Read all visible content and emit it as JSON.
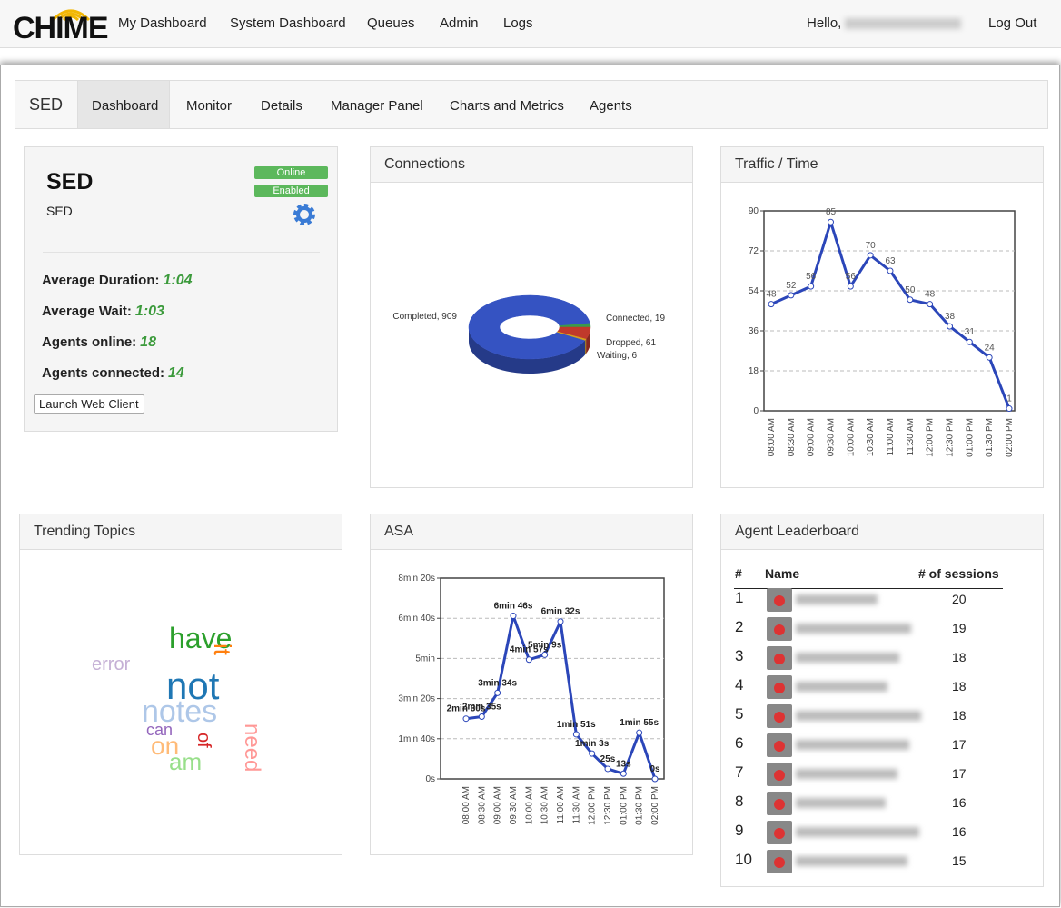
{
  "nav": {
    "logo": "CHIME",
    "items": [
      "My Dashboard",
      "System Dashboard",
      "Queues",
      "Admin",
      "Logs"
    ],
    "greeting": "Hello,",
    "logout": "Log Out"
  },
  "tabs": {
    "title": "SED",
    "items": [
      "Dashboard",
      "Monitor",
      "Details",
      "Manager Panel",
      "Charts and Metrics",
      "Agents"
    ]
  },
  "queue_card": {
    "title": "SED",
    "subtitle": "SED",
    "badges": [
      "Online",
      "Enabled"
    ],
    "stats": [
      {
        "label": "Average Duration:",
        "value": "1:04"
      },
      {
        "label": "Average Wait:",
        "value": "1:03"
      },
      {
        "label": "Agents online:",
        "value": 18
      },
      {
        "label": "Agents connected:",
        "value": 14
      }
    ],
    "button": "Launch Web Client"
  },
  "chart_data": [
    {
      "type": "pie",
      "title": "Connections",
      "values": [
        909,
        19,
        61,
        6
      ],
      "value_labels": [
        "Completed, 909",
        "Connected, 19",
        "Dropped, 61",
        "Waiting, 6"
      ],
      "colors": [
        "#3553c2",
        "#3a9a4a",
        "#c0392b",
        "#d4a020"
      ]
    },
    {
      "type": "line",
      "title": "Traffic / Time",
      "categories": [
        "08:00 AM",
        "08:30 AM",
        "09:00 AM",
        "09:30 AM",
        "10:00 AM",
        "10:30 AM",
        "11:00 AM",
        "11:30 AM",
        "12:00 PM",
        "12:30 PM",
        "01:00 PM",
        "01:30 PM",
        "02:00 PM"
      ],
      "values": [
        48,
        52,
        56,
        85,
        56,
        70,
        63,
        50,
        48,
        38,
        31,
        24,
        1
      ],
      "ylim": [
        0,
        90
      ],
      "yticks": [
        0,
        18,
        36,
        54,
        72,
        90
      ],
      "grid": true,
      "color": "#2b46b9"
    },
    {
      "type": "line",
      "title": "ASA",
      "categories": [
        "08:00 AM",
        "08:30 AM",
        "09:00 AM",
        "09:30 AM",
        "10:00 AM",
        "10:30 AM",
        "11:00 AM",
        "11:30 AM",
        "12:00 PM",
        "12:30 PM",
        "01:00 PM",
        "01:30 PM",
        "02:00 PM"
      ],
      "values": [
        150,
        155,
        214,
        406,
        297,
        309,
        392,
        111,
        63,
        25,
        13,
        115,
        0
      ],
      "value_labels": [
        "2min 30s",
        "2min 35s",
        "3min 34s",
        "6min 46s",
        "4min 57s",
        "5min 9s",
        "6min 32s",
        "1min 51s",
        "1min 3s",
        "25s",
        "13s",
        "1min 55s",
        "0s"
      ],
      "ylim": [
        0,
        500
      ],
      "yticks": [
        {
          "value": 0,
          "label": "0s"
        },
        {
          "value": 100,
          "label": "1min 40s"
        },
        {
          "value": 200,
          "label": "3min 20s"
        },
        {
          "value": 300,
          "label": "5min"
        },
        {
          "value": 400,
          "label": "6min 40s"
        },
        {
          "value": 500,
          "label": "8min 20s"
        }
      ],
      "grid": true,
      "color": "#2b46b9"
    }
  ],
  "trending": {
    "title": "Trending Topics",
    "words": [
      {
        "text": "have",
        "color": "#2ca02c"
      },
      {
        "text": "it",
        "color": "#ff7f0e"
      },
      {
        "text": "error",
        "color": "#c5b0d5"
      },
      {
        "text": "not",
        "color": "#1f77b4"
      },
      {
        "text": "notes",
        "color": "#aec7e8"
      },
      {
        "text": "can",
        "color": "#9467bd"
      },
      {
        "text": "of",
        "color": "#d62728"
      },
      {
        "text": "on",
        "color": "#ffbb78"
      },
      {
        "text": "am",
        "color": "#98df8a"
      },
      {
        "text": "need",
        "color": "#ff9896"
      }
    ]
  },
  "leaderboard": {
    "title": "Agent Leaderboard",
    "columns": [
      "#",
      "Name",
      "# of sessions"
    ],
    "rows": [
      {
        "rank": 1,
        "sessions": 20
      },
      {
        "rank": 2,
        "sessions": 19
      },
      {
        "rank": 3,
        "sessions": 18
      },
      {
        "rank": 4,
        "sessions": 18
      },
      {
        "rank": 5,
        "sessions": 18
      },
      {
        "rank": 6,
        "sessions": 17
      },
      {
        "rank": 7,
        "sessions": 17
      },
      {
        "rank": 8,
        "sessions": 16
      },
      {
        "rank": 9,
        "sessions": 16
      },
      {
        "rank": 10,
        "sessions": 15
      }
    ]
  }
}
